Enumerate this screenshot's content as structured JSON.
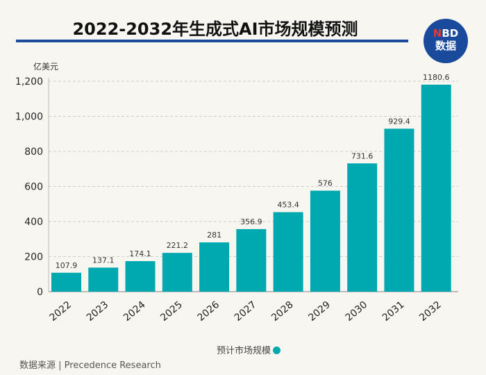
{
  "header": {
    "title": "2022-2032年生成式AI市场规模预测",
    "logo_n": "N",
    "logo_bd": "BD",
    "logo_sub": "数据"
  },
  "source": "数据来源 | Precedence Research",
  "chart_data": {
    "type": "bar",
    "title": "2022-2032年生成式AI市场规模预测",
    "ylabel": "亿美元",
    "xlabel": "",
    "ylim": [
      0,
      1200
    ],
    "yticks": [
      0,
      200,
      400,
      600,
      800,
      1000,
      1200
    ],
    "ytick_labels": [
      "0",
      "200",
      "400",
      "600",
      "800",
      "1,000",
      "1,200"
    ],
    "grid": true,
    "legend": "bottom",
    "categories": [
      "2022",
      "2023",
      "2024",
      "2025",
      "2026",
      "2027",
      "2028",
      "2029",
      "2030",
      "2031",
      "2032"
    ],
    "series": [
      {
        "name": "预计市场规模",
        "values": [
          107.9,
          137.1,
          174.1,
          221.2,
          281,
          356.9,
          453.4,
          576,
          731.6,
          929.4,
          1180.6
        ],
        "labels": [
          "107.9",
          "137.1",
          "174.1",
          "221.2",
          "281",
          "356.9",
          "453.4",
          "576",
          "731.6",
          "929.4",
          "1180.6"
        ],
        "color": "#00a8b0"
      }
    ]
  }
}
